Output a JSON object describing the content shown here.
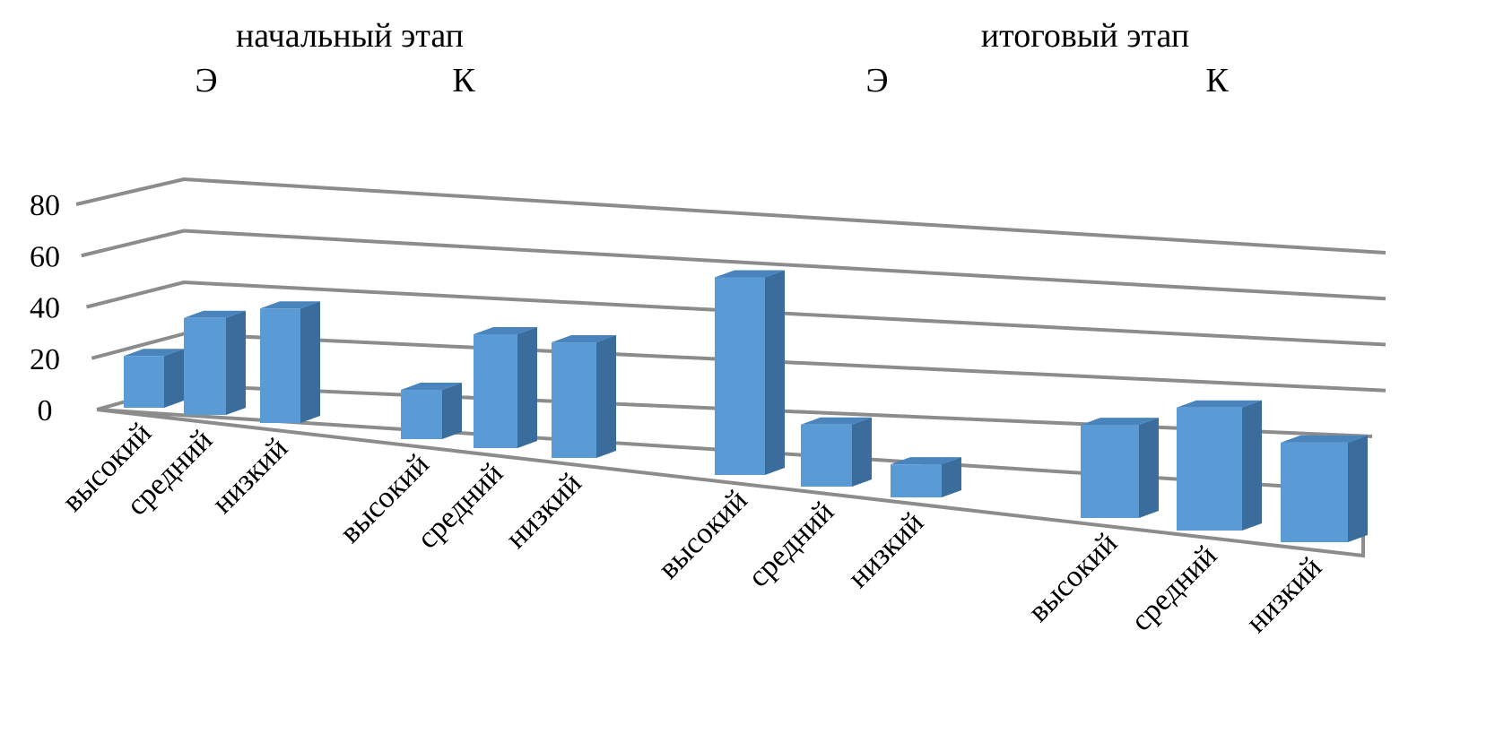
{
  "chart_data": {
    "type": "bar",
    "style": "3d-column",
    "grid": true,
    "legend": "none",
    "ylim": [
      0,
      80
    ],
    "yticks": [
      "0",
      "20",
      "40",
      "60",
      "80"
    ],
    "stages": [
      {
        "label": "начальный этап",
        "groups": [
          "Э",
          "К"
        ]
      },
      {
        "label": "итоговый этап",
        "groups": [
          "Э",
          "К"
        ]
      }
    ],
    "groups": [
      {
        "stage": "начальный этап",
        "label": "Э",
        "categories": [
          "высокий",
          "средний",
          "низкий"
        ],
        "values": [
          20,
          37,
          43
        ]
      },
      {
        "stage": "начальный этап",
        "label": "К",
        "categories": [
          "высокий",
          "средний",
          "низкий"
        ],
        "values": [
          18,
          41,
          41
        ]
      },
      {
        "stage": "итоговый этап",
        "label": "Э",
        "categories": [
          "высокий",
          "средний",
          "низкий"
        ],
        "values": [
          68,
          21,
          11
        ]
      },
      {
        "stage": "итоговый этап",
        "label": "К",
        "categories": [
          "высокий",
          "средний",
          "низкий"
        ],
        "values": [
          30,
          39,
          31
        ]
      }
    ],
    "colors": {
      "bar_front": "#5b9bd5",
      "bar_side": "#3a6d9c",
      "bar_top": "#4a84bc",
      "grid": "#8c8c8c"
    }
  }
}
